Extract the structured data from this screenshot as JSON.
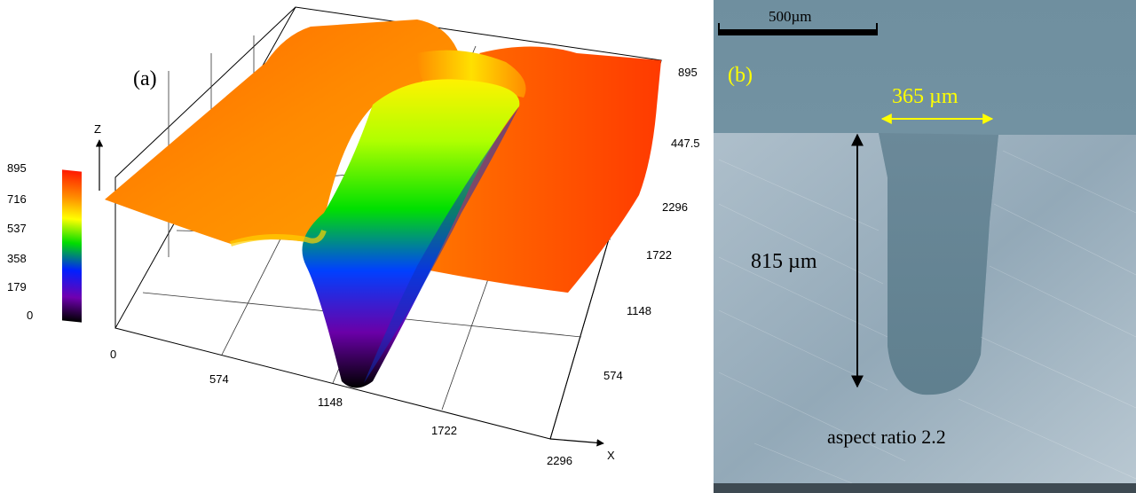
{
  "panel_a": {
    "label": "(a)",
    "axis_z_name": "Z",
    "axis_x_name": "X",
    "colorbar_ticks": [
      "895",
      "716",
      "537",
      "358",
      "179",
      "0"
    ],
    "x_ticks": [
      "0",
      "574",
      "1148",
      "1722",
      "2296"
    ],
    "y_ticks": [
      "574",
      "1148",
      "1722",
      "2296"
    ],
    "z_ticks": [
      "447.5",
      "895"
    ],
    "colormap": [
      "#ff2a00",
      "#ff8c00",
      "#ffff00",
      "#00e000",
      "#0010ff",
      "#6a00a0",
      "#000000"
    ]
  },
  "panel_b": {
    "label": "(b)",
    "scalebar_label": "500µm",
    "width_label": "365 µm",
    "depth_label": "815 µm",
    "aspect_label": "aspect ratio 2.2",
    "annotation_color": "#ffff00"
  }
}
